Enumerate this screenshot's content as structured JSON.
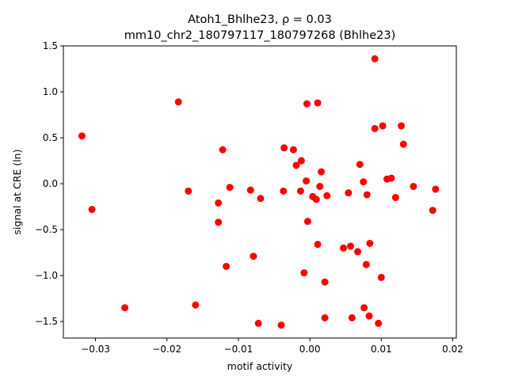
{
  "chart_data": {
    "type": "scatter",
    "title": "Atoh1_Bhlhe23, ρ = 0.03",
    "subtitle": "mm10_chr2_180797117_180797268 (Bhlhe23)",
    "xlabel": "motif activity",
    "ylabel": "signal at CRE (ln)",
    "xlim": [
      -0.0345,
      0.0205
    ],
    "ylim": [
      -1.68,
      1.5
    ],
    "xticks": [
      -0.03,
      -0.02,
      -0.01,
      0.0,
      0.01,
      0.02
    ],
    "xtick_labels": [
      "−0.03",
      "−0.02",
      "−0.01",
      "0.00",
      "0.01",
      "0.02"
    ],
    "yticks": [
      -1.5,
      -1.0,
      -0.5,
      0.0,
      0.5,
      1.0,
      1.5
    ],
    "ytick_labels": [
      "−1.5",
      "−1.0",
      "−0.5",
      "0.0",
      "0.5",
      "1.0",
      "1.5"
    ],
    "grid": false,
    "marker_color": "#ff0000",
    "points": [
      [
        -0.0319,
        0.52
      ],
      [
        -0.0305,
        -0.28
      ],
      [
        -0.0259,
        -1.35
      ],
      [
        -0.0184,
        0.89
      ],
      [
        -0.017,
        -0.08
      ],
      [
        -0.016,
        -1.32
      ],
      [
        -0.0128,
        -0.21
      ],
      [
        -0.0128,
        -0.42
      ],
      [
        -0.0122,
        0.37
      ],
      [
        -0.0117,
        -0.9
      ],
      [
        -0.0112,
        -0.04
      ],
      [
        -0.0083,
        -0.07
      ],
      [
        -0.0079,
        -0.79
      ],
      [
        -0.0072,
        -1.52
      ],
      [
        -0.0069,
        -0.16
      ],
      [
        -0.004,
        -1.54
      ],
      [
        -0.0036,
        0.39
      ],
      [
        -0.0037,
        -0.08
      ],
      [
        -0.0023,
        0.37
      ],
      [
        -0.0019,
        0.2
      ],
      [
        -0.0013,
        -0.08
      ],
      [
        -0.0012,
        0.25
      ],
      [
        -0.0008,
        -0.97
      ],
      [
        -0.0005,
        0.03
      ],
      [
        -0.0004,
        0.87
      ],
      [
        -0.0003,
        -0.41
      ],
      [
        0.0004,
        -0.14
      ],
      [
        0.0009,
        -0.17
      ],
      [
        0.0011,
        0.88
      ],
      [
        0.0011,
        -0.66
      ],
      [
        0.0014,
        -0.03
      ],
      [
        0.0016,
        0.13
      ],
      [
        0.0021,
        -1.07
      ],
      [
        0.0021,
        -1.46
      ],
      [
        0.0024,
        -0.13
      ],
      [
        0.0047,
        -0.7
      ],
      [
        0.0054,
        -0.1
      ],
      [
        0.0057,
        -0.68
      ],
      [
        0.0059,
        -1.46
      ],
      [
        0.0067,
        -0.74
      ],
      [
        0.007,
        0.21
      ],
      [
        0.0075,
        0.02
      ],
      [
        0.0076,
        -1.35
      ],
      [
        0.0079,
        -0.88
      ],
      [
        0.008,
        -0.12
      ],
      [
        0.0083,
        -1.44
      ],
      [
        0.0084,
        -0.65
      ],
      [
        0.0091,
        0.6
      ],
      [
        0.0091,
        1.36
      ],
      [
        0.0096,
        -1.52
      ],
      [
        0.01,
        -1.02
      ],
      [
        0.0102,
        0.63
      ],
      [
        0.0108,
        0.05
      ],
      [
        0.0114,
        0.06
      ],
      [
        0.012,
        -0.15
      ],
      [
        0.0128,
        0.63
      ],
      [
        0.0131,
        0.43
      ],
      [
        0.0145,
        -0.03
      ],
      [
        0.0172,
        -0.29
      ],
      [
        0.0176,
        -0.06
      ]
    ]
  }
}
